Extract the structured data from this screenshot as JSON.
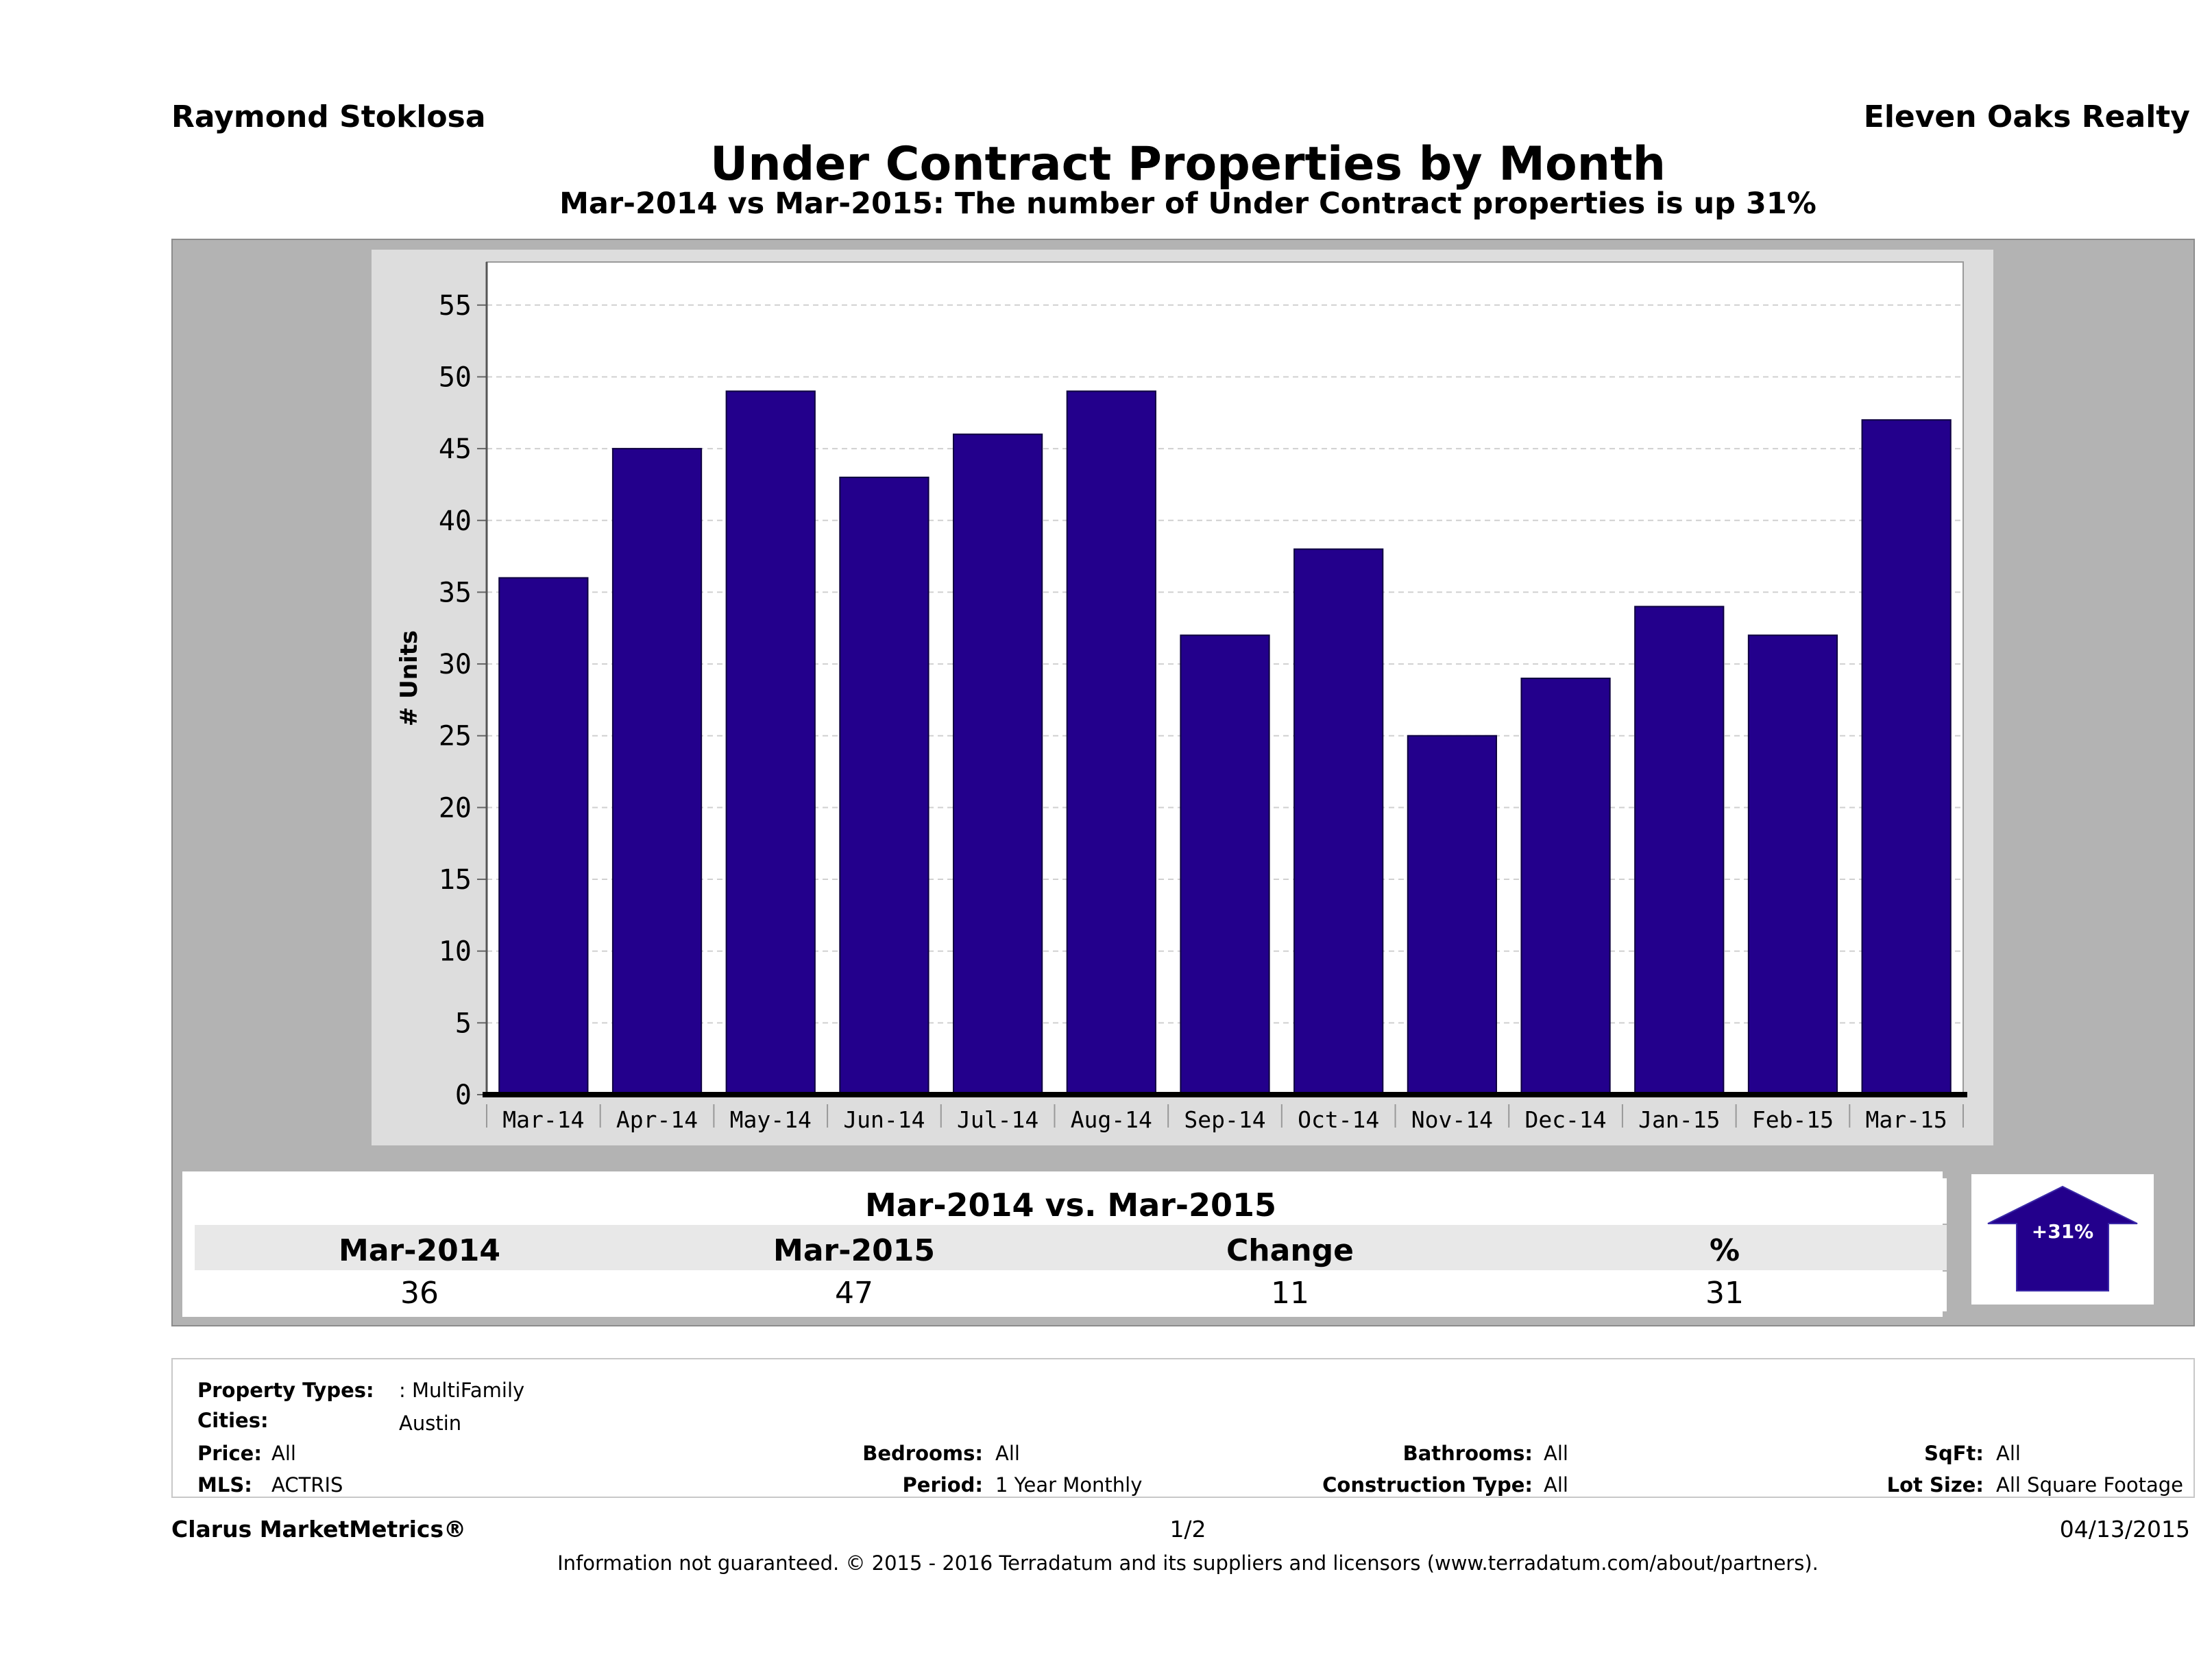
{
  "header": {
    "agent": "Raymond Stoklosa",
    "company": "Eleven Oaks Realty"
  },
  "chart_data": {
    "type": "bar",
    "title": "Under Contract Properties by Month",
    "subtitle": "Mar-2014 vs Mar-2015: The number of Under Contract  properties is up 31%",
    "ylabel": "# Units",
    "xlabel": "",
    "categories": [
      "Mar-14",
      "Apr-14",
      "May-14",
      "Jun-14",
      "Jul-14",
      "Aug-14",
      "Sep-14",
      "Oct-14",
      "Nov-14",
      "Dec-14",
      "Jan-15",
      "Feb-15",
      "Mar-15"
    ],
    "values": [
      36,
      45,
      49,
      43,
      46,
      49,
      32,
      38,
      25,
      29,
      34,
      32,
      47
    ],
    "ylim": [
      0,
      58
    ],
    "yticks": [
      0,
      5,
      10,
      15,
      20,
      25,
      30,
      35,
      40,
      45,
      50,
      55
    ],
    "grid": true,
    "bar_color": "#23008c"
  },
  "summary": {
    "title": "Mar-2014 vs. Mar-2015",
    "headers": [
      "Mar-2014",
      "Mar-2015",
      "Change",
      "%"
    ],
    "values": [
      "36",
      "47",
      "11",
      "31"
    ],
    "badge": "+31%",
    "badge_color": "#23008c"
  },
  "info": {
    "property_types_label": "Property Types:",
    "property_types_value": ": MultiFamily",
    "cities_label": "Cities:",
    "cities_value": "Austin",
    "price_label": "Price:",
    "price_value": "All",
    "mls_label": "MLS:",
    "mls_value": "ACTRIS",
    "bedrooms_label": "Bedrooms:",
    "bedrooms_value": "All",
    "period_label": "Period:",
    "period_value": "1 Year Monthly",
    "bathrooms_label": "Bathrooms:",
    "bathrooms_value": "All",
    "construction_label": "Construction Type:",
    "construction_value": "All",
    "sqft_label": "SqFt:",
    "sqft_value": "All",
    "lot_label": "Lot Size:",
    "lot_value": "All Square Footage"
  },
  "footer": {
    "brand": "Clarus MarketMetrics®",
    "page": "1/2",
    "date": "04/13/2015",
    "disclaimer": "Information not guaranteed. © 2015 - 2016 Terradatum and its suppliers and licensors (www.terradatum.com/about/partners)."
  }
}
